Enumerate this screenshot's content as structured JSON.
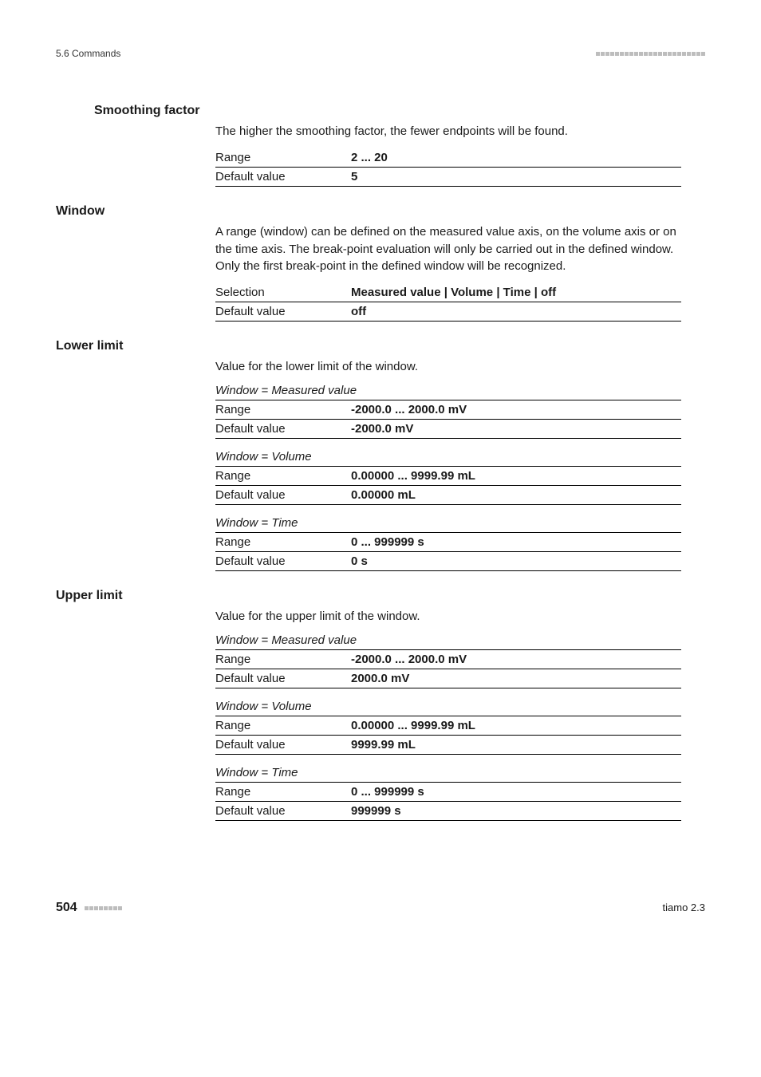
{
  "header": {
    "section_label": "5.6 Commands",
    "tick_count": 23
  },
  "smoothing_factor": {
    "heading": "Smoothing factor",
    "description": "The higher the smoothing factor, the fewer endpoints will be found.",
    "rows": [
      {
        "label": "Range",
        "value": "2 ... 20"
      },
      {
        "label": "Default value",
        "value": "5"
      }
    ]
  },
  "window": {
    "heading": "Window",
    "description": "A range (window) can be defined on the measured value axis, on the volume axis or on the time axis. The break-point evaluation will only be carried out in the defined window. Only the first break-point in the defined window will be recognized.",
    "rows": [
      {
        "label": "Selection",
        "value": "Measured value | Volume | Time | off"
      },
      {
        "label": "Default value",
        "value": "off"
      }
    ]
  },
  "lower_limit": {
    "heading": "Lower limit",
    "description": "Value for the lower limit of the window.",
    "tables": [
      {
        "caption": "Window = Measured value",
        "rows": [
          {
            "label": "Range",
            "value": "-2000.0 ... 2000.0 mV"
          },
          {
            "label": "Default value",
            "value": "-2000.0 mV"
          }
        ]
      },
      {
        "caption": "Window = Volume",
        "rows": [
          {
            "label": "Range",
            "value": "0.00000 ... 9999.99 mL"
          },
          {
            "label": "Default value",
            "value": "0.00000 mL"
          }
        ]
      },
      {
        "caption": "Window = Time",
        "rows": [
          {
            "label": "Range",
            "value": "0 ... 999999 s"
          },
          {
            "label": "Default value",
            "value": "0 s"
          }
        ]
      }
    ]
  },
  "upper_limit": {
    "heading": "Upper limit",
    "description": "Value for the upper limit of the window.",
    "tables": [
      {
        "caption": "Window = Measured value",
        "rows": [
          {
            "label": "Range",
            "value": "-2000.0 ... 2000.0 mV"
          },
          {
            "label": "Default value",
            "value": "2000.0 mV"
          }
        ]
      },
      {
        "caption": "Window = Volume",
        "rows": [
          {
            "label": "Range",
            "value": "0.00000 ... 9999.99 mL"
          },
          {
            "label": "Default value",
            "value": "9999.99 mL"
          }
        ]
      },
      {
        "caption": "Window = Time",
        "rows": [
          {
            "label": "Range",
            "value": "0 ... 999999 s"
          },
          {
            "label": "Default value",
            "value": "999999 s"
          }
        ]
      }
    ]
  },
  "footer": {
    "page_number": "504",
    "tick_count": 8,
    "product": "tiamo 2.3"
  }
}
